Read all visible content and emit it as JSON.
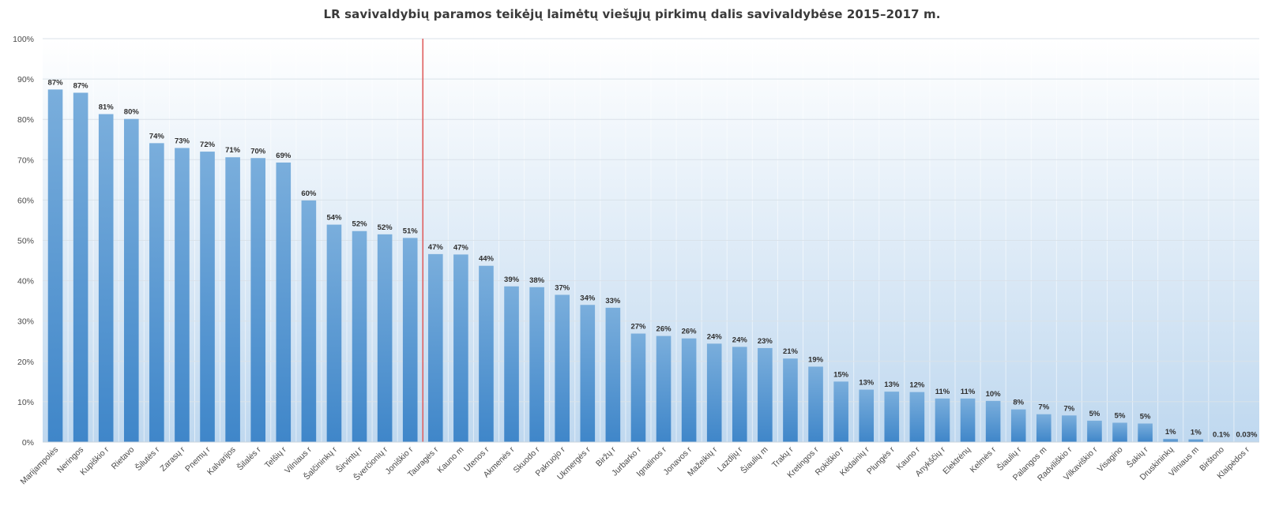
{
  "chart_data": {
    "type": "bar",
    "title": "LR savivaldybių paramos teikėjų laimėtų viešųjų pirkimų dalis savivaldybėse 2015–2017 m.",
    "xlabel": "",
    "ylabel": "",
    "ylim": [
      0,
      100
    ],
    "y_ticks": [
      "0%",
      "10%",
      "20%",
      "30%",
      "40%",
      "50%",
      "60%",
      "70%",
      "80%",
      "90%",
      "100%"
    ],
    "grid": true,
    "legend": "none",
    "categories": [
      "Marijampolės",
      "Neringos",
      "Kupiškio r",
      "Rietavo",
      "Šilutės r",
      "Zarasų r",
      "Pnemų r",
      "Kalvarijos",
      "Šilalės r",
      "Telšių r",
      "Vilniaus r",
      "Šalčininkų r",
      "Širvintų r",
      "Šverčionių r",
      "Joniškio r",
      "Tauragės r",
      "Kauno m",
      "Utenos r",
      "Akmenės r",
      "Skuodo r",
      "Pakruojo r",
      "Ukmergės r",
      "Biržų r",
      "Jurbarko r",
      "Ignalinos r",
      "Jonavos r",
      "Mažeikių r",
      "Lazdijų r",
      "Šiaulių m",
      "Trakų r",
      "Kretingos r",
      "Rokiškio r",
      "Kėdainių r",
      "Plungės r",
      "Kauno r",
      "Anykščių r",
      "Elektrėnų",
      "Kelmės r",
      "Šiaulių r",
      "Palangos m",
      "Radviliškio r",
      "Vilkaviškio r",
      "Visagino",
      "Šakių r",
      "Druskininkų",
      "Vilniaus m",
      "Birštono",
      "Klaipėdos r"
    ],
    "values": [
      87.4,
      86.6,
      81.3,
      80.1,
      74.1,
      72.9,
      72.0,
      70.6,
      70.4,
      69.3,
      59.9,
      53.9,
      52.3,
      51.5,
      50.6,
      46.6,
      46.5,
      43.7,
      38.6,
      38.4,
      36.5,
      34.0,
      33.3,
      26.9,
      26.3,
      25.7,
      24.4,
      23.6,
      23.3,
      20.7,
      18.7,
      15.0,
      13.0,
      12.5,
      12.4,
      10.8,
      10.8,
      10.2,
      8.1,
      6.9,
      6.6,
      5.3,
      4.8,
      4.6,
      0.8,
      0.7,
      0.1,
      0.03
    ],
    "data_labels": [
      "87%",
      "87%",
      "81%",
      "80%",
      "74%",
      "73%",
      "72%",
      "71%",
      "70%",
      "69%",
      "60%",
      "54%",
      "52%",
      "52%",
      "51%",
      "47%",
      "47%",
      "44%",
      "39%",
      "38%",
      "37%",
      "34%",
      "33%",
      "27%",
      "26%",
      "26%",
      "24%",
      "24%",
      "23%",
      "21%",
      "19%",
      "15%",
      "13%",
      "13%",
      "12%",
      "11%",
      "11%",
      "10%",
      "8%",
      "7%",
      "7%",
      "5%",
      "5%",
      "5%",
      "1%",
      "1%",
      "0.1%",
      "0.03%"
    ],
    "colors": {
      "bar_top": "#7aaedc",
      "bar_bottom": "#3f86c9",
      "plot_bg_top": "#ffffff",
      "plot_bg_bottom": "#bfd8ef",
      "gridline": "#d9e2ea",
      "divider": "#e06060"
    },
    "divider_after_category": "Joniškio r"
  }
}
